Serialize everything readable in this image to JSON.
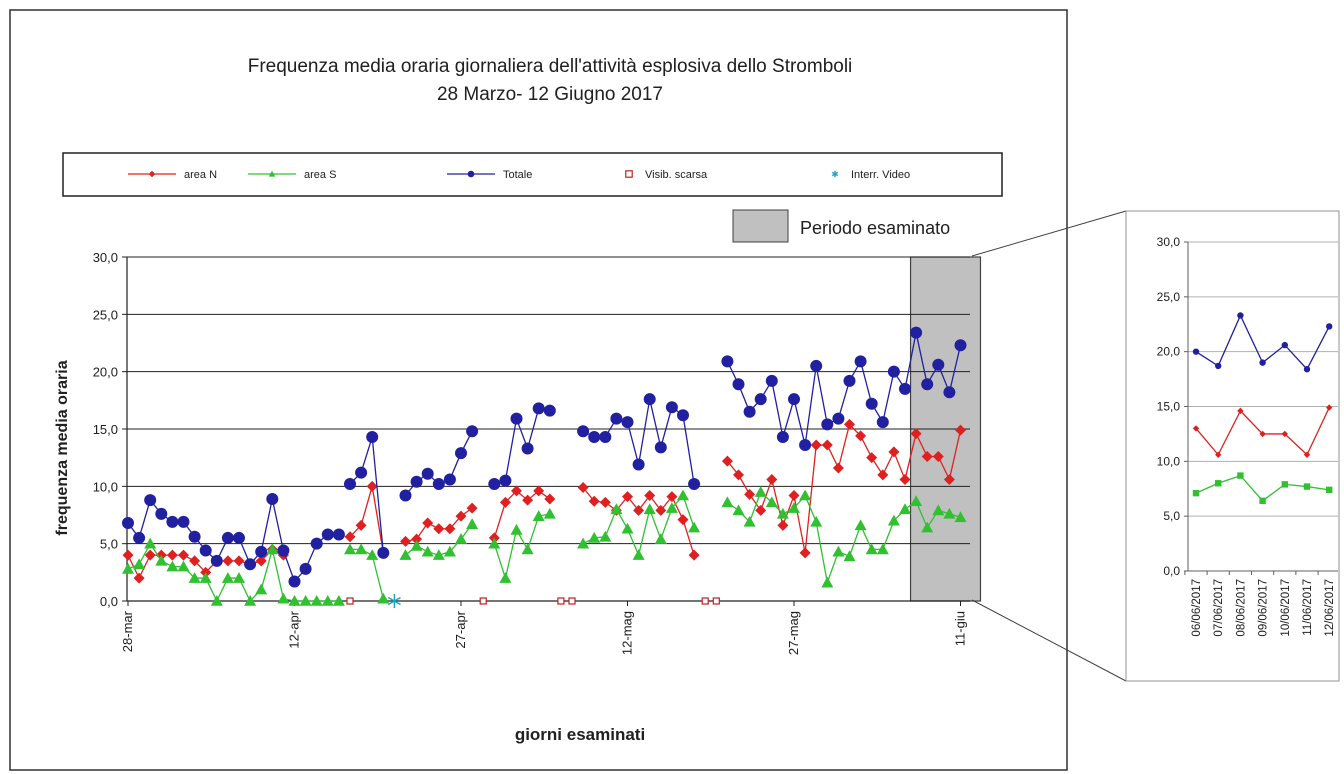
{
  "chart_data": [
    {
      "type": "line",
      "title": "Frequenza media oraria giornaliera dell'attività esplosiva dello Stromboli",
      "subtitle": "28 Marzo- 12 Giugno 2017",
      "xlabel": "giorni esaminati",
      "ylabel": "frequenza  media oraria",
      "ylim": [
        0,
        30
      ],
      "yticks": [
        "0,0",
        "5,0",
        "10,0",
        "15,0",
        "20,0",
        "25,0",
        "30,0"
      ],
      "xticks": [
        {
          "day": 0,
          "label": "28-mar"
        },
        {
          "day": 15,
          "label": "12-apr"
        },
        {
          "day": 30,
          "label": "27-apr"
        },
        {
          "day": 45,
          "label": "12-mag"
        },
        {
          "day": 60,
          "label": "27-mag"
        },
        {
          "day": 75,
          "label": "11-giu"
        }
      ],
      "grid": true,
      "legend_position": "top",
      "legend": [
        "area N",
        "area S",
        "Totale",
        "Visib. scarsa",
        "Interr. Video"
      ],
      "highlight": {
        "label": "Periodo esaminato",
        "from_day": 70.5,
        "to_day": 76.8,
        "color": "#c0c0c0"
      },
      "series": [
        {
          "name": "area N",
          "color": "#e02020",
          "marker": "diamond",
          "points": [
            [
              0,
              4.0
            ],
            [
              1,
              2.0
            ],
            [
              2,
              4.0
            ],
            [
              3,
              4.0
            ],
            [
              4,
              4.0
            ],
            [
              5,
              4.0
            ],
            [
              6,
              3.5
            ],
            [
              7,
              2.5
            ],
            [
              8,
              3.5
            ],
            [
              9,
              3.5
            ],
            [
              10,
              3.5
            ],
            [
              11,
              3.2
            ],
            [
              12,
              3.5
            ],
            [
              13,
              4.5
            ],
            [
              14,
              4.0
            ],
            [
              null,
              null
            ],
            [
              20,
              5.6
            ],
            [
              21,
              6.6
            ],
            [
              22,
              10.0
            ],
            [
              23,
              4.2
            ],
            [
              null,
              null
            ],
            [
              25,
              5.2
            ],
            [
              26,
              5.4
            ],
            [
              27,
              6.8
            ],
            [
              28,
              6.3
            ],
            [
              29,
              6.3
            ],
            [
              30,
              7.4
            ],
            [
              31,
              8.1
            ],
            [
              null,
              null
            ],
            [
              33,
              5.5
            ],
            [
              34,
              8.6
            ],
            [
              35,
              9.6
            ],
            [
              36,
              8.8
            ],
            [
              37,
              9.6
            ],
            [
              38,
              8.9
            ],
            [
              null,
              null
            ],
            [
              41,
              9.9
            ],
            [
              42,
              8.7
            ],
            [
              43,
              8.6
            ],
            [
              44,
              7.9
            ],
            [
              45,
              9.1
            ],
            [
              46,
              7.9
            ],
            [
              47,
              9.2
            ],
            [
              48,
              7.9
            ],
            [
              49,
              9.1
            ],
            [
              50,
              7.1
            ],
            [
              51,
              4.0
            ],
            [
              null,
              null
            ],
            [
              54,
              12.2
            ],
            [
              55,
              11.0
            ],
            [
              56,
              9.3
            ],
            [
              57,
              7.9
            ],
            [
              58,
              10.6
            ],
            [
              59,
              6.6
            ],
            [
              60,
              9.2
            ],
            [
              61,
              4.2
            ],
            [
              62,
              13.6
            ],
            [
              63,
              13.6
            ],
            [
              64,
              11.6
            ],
            [
              65,
              15.4
            ],
            [
              66,
              14.4
            ],
            [
              67,
              12.5
            ],
            [
              68,
              11.0
            ],
            [
              69,
              13.0
            ],
            [
              70,
              10.6
            ],
            [
              71,
              14.6
            ],
            [
              72,
              12.6
            ],
            [
              73,
              12.6
            ],
            [
              74,
              10.6
            ],
            [
              75,
              14.9
            ]
          ]
        },
        {
          "name": "area S",
          "color": "#30c030",
          "marker": "triangle",
          "points": [
            [
              0,
              2.8
            ],
            [
              1,
              3.2
            ],
            [
              2,
              5.0
            ],
            [
              3,
              3.5
            ],
            [
              4,
              3.0
            ],
            [
              5,
              3.0
            ],
            [
              6,
              2.0
            ],
            [
              7,
              2.0
            ],
            [
              8,
              0.0
            ],
            [
              9,
              2.0
            ],
            [
              10,
              2.0
            ],
            [
              11,
              0.0
            ],
            [
              12,
              1.0
            ],
            [
              13,
              4.5
            ],
            [
              14,
              0.2
            ],
            [
              15,
              0.0
            ],
            [
              16,
              0.0
            ],
            [
              17,
              0.0
            ],
            [
              18,
              0.0
            ],
            [
              19,
              0.0
            ],
            [
              null,
              null
            ],
            [
              20,
              4.5
            ],
            [
              21,
              4.5
            ],
            [
              22,
              4.0
            ],
            [
              23,
              0.2
            ],
            [
              null,
              null
            ],
            [
              25,
              4.0
            ],
            [
              26,
              4.8
            ],
            [
              27,
              4.3
            ],
            [
              28,
              4.0
            ],
            [
              29,
              4.3
            ],
            [
              30,
              5.4
            ],
            [
              31,
              6.7
            ],
            [
              null,
              null
            ],
            [
              33,
              5.0
            ],
            [
              34,
              2.0
            ],
            [
              35,
              6.2
            ],
            [
              36,
              4.5
            ],
            [
              37,
              7.4
            ],
            [
              38,
              7.6
            ],
            [
              null,
              null
            ],
            [
              41,
              5.0
            ],
            [
              42,
              5.5
            ],
            [
              43,
              5.6
            ],
            [
              44,
              8.0
            ],
            [
              45,
              6.3
            ],
            [
              46,
              4.0
            ],
            [
              47,
              8.0
            ],
            [
              48,
              5.4
            ],
            [
              49,
              8.1
            ],
            [
              50,
              9.2
            ],
            [
              51,
              6.4
            ],
            [
              null,
              null
            ],
            [
              54,
              8.6
            ],
            [
              55,
              7.9
            ],
            [
              56,
              6.9
            ],
            [
              57,
              9.5
            ],
            [
              58,
              8.6
            ],
            [
              59,
              7.6
            ],
            [
              60,
              8.1
            ],
            [
              61,
              9.2
            ],
            [
              62,
              6.9
            ],
            [
              63,
              1.6
            ],
            [
              64,
              4.3
            ],
            [
              65,
              3.9
            ],
            [
              66,
              6.6
            ],
            [
              67,
              4.5
            ],
            [
              68,
              4.5
            ],
            [
              69,
              7.0
            ],
            [
              70,
              8.0
            ],
            [
              71,
              8.7
            ],
            [
              72,
              6.4
            ],
            [
              73,
              7.9
            ],
            [
              74,
              7.6
            ],
            [
              75,
              7.3
            ]
          ]
        },
        {
          "name": "Totale",
          "color": "#2020a0",
          "marker": "circle",
          "points": [
            [
              0,
              6.8
            ],
            [
              1,
              5.5
            ],
            [
              2,
              8.8
            ],
            [
              3,
              7.6
            ],
            [
              4,
              6.9
            ],
            [
              5,
              6.9
            ],
            [
              6,
              5.6
            ],
            [
              7,
              4.4
            ],
            [
              8,
              3.5
            ],
            [
              9,
              5.5
            ],
            [
              10,
              5.5
            ],
            [
              11,
              3.2
            ],
            [
              12,
              4.3
            ],
            [
              13,
              8.9
            ],
            [
              14,
              4.4
            ],
            [
              15,
              1.7
            ],
            [
              16,
              2.8
            ],
            [
              17,
              5.0
            ],
            [
              18,
              5.8
            ],
            [
              19,
              5.8
            ],
            [
              null,
              null
            ],
            [
              20,
              10.2
            ],
            [
              21,
              11.2
            ],
            [
              22,
              14.3
            ],
            [
              23,
              4.2
            ],
            [
              null,
              null
            ],
            [
              25,
              9.2
            ],
            [
              26,
              10.4
            ],
            [
              27,
              11.1
            ],
            [
              28,
              10.2
            ],
            [
              29,
              10.6
            ],
            [
              30,
              12.9
            ],
            [
              31,
              14.8
            ],
            [
              null,
              null
            ],
            [
              33,
              10.2
            ],
            [
              34,
              10.5
            ],
            [
              35,
              15.9
            ],
            [
              36,
              13.3
            ],
            [
              37,
              16.8
            ],
            [
              38,
              16.6
            ],
            [
              null,
              null
            ],
            [
              41,
              14.8
            ],
            [
              42,
              14.3
            ],
            [
              43,
              14.3
            ],
            [
              44,
              15.9
            ],
            [
              45,
              15.6
            ],
            [
              46,
              11.9
            ],
            [
              47,
              17.6
            ],
            [
              48,
              13.4
            ],
            [
              49,
              16.9
            ],
            [
              50,
              16.2
            ],
            [
              51,
              10.2
            ],
            [
              null,
              null
            ],
            [
              54,
              20.9
            ],
            [
              55,
              18.9
            ],
            [
              56,
              16.5
            ],
            [
              57,
              17.6
            ],
            [
              58,
              19.2
            ],
            [
              59,
              14.3
            ],
            [
              60,
              17.6
            ],
            [
              61,
              13.6
            ],
            [
              62,
              20.5
            ],
            [
              63,
              15.4
            ],
            [
              64,
              15.9
            ],
            [
              65,
              19.2
            ],
            [
              66,
              20.9
            ],
            [
              67,
              17.2
            ],
            [
              68,
              15.6
            ],
            [
              69,
              20.0
            ],
            [
              70,
              18.5
            ],
            [
              71,
              23.4
            ],
            [
              72,
              18.9
            ],
            [
              73,
              20.6
            ],
            [
              74,
              18.2
            ],
            [
              75,
              22.3
            ]
          ]
        },
        {
          "name": "Visib. scarsa",
          "color": "#c02020",
          "marker": "open-square",
          "points": [
            [
              20,
              0
            ],
            [
              32,
              0
            ],
            [
              39,
              0
            ],
            [
              40,
              0
            ],
            [
              52,
              0
            ],
            [
              53,
              0
            ]
          ]
        },
        {
          "name": "Interr. Video",
          "color": "#20a0c0",
          "marker": "star",
          "points": [
            [
              24,
              0
            ]
          ]
        }
      ]
    },
    {
      "type": "line",
      "ylim": [
        0,
        30
      ],
      "yticks": [
        "0,0",
        "5,0",
        "10,0",
        "15,0",
        "20,0",
        "25,0",
        "30,0"
      ],
      "categories": [
        "06/06/2017",
        "07/06/2017",
        "08/06/2017",
        "09/06/2017",
        "10/06/2017",
        "11/06/2017",
        "12/06/2017"
      ],
      "grid": true,
      "series": [
        {
          "name": "area N",
          "color": "#e02020",
          "marker": "diamond",
          "values": [
            13.0,
            10.6,
            14.6,
            12.5,
            12.5,
            10.6,
            14.9
          ]
        },
        {
          "name": "area S",
          "color": "#30c030",
          "marker": "square",
          "values": [
            7.1,
            8.0,
            8.7,
            6.4,
            7.9,
            7.7,
            7.4
          ]
        },
        {
          "name": "Totale",
          "color": "#2020a0",
          "marker": "circle",
          "values": [
            20.0,
            18.7,
            23.3,
            19.0,
            20.6,
            18.4,
            22.3
          ]
        }
      ]
    }
  ]
}
